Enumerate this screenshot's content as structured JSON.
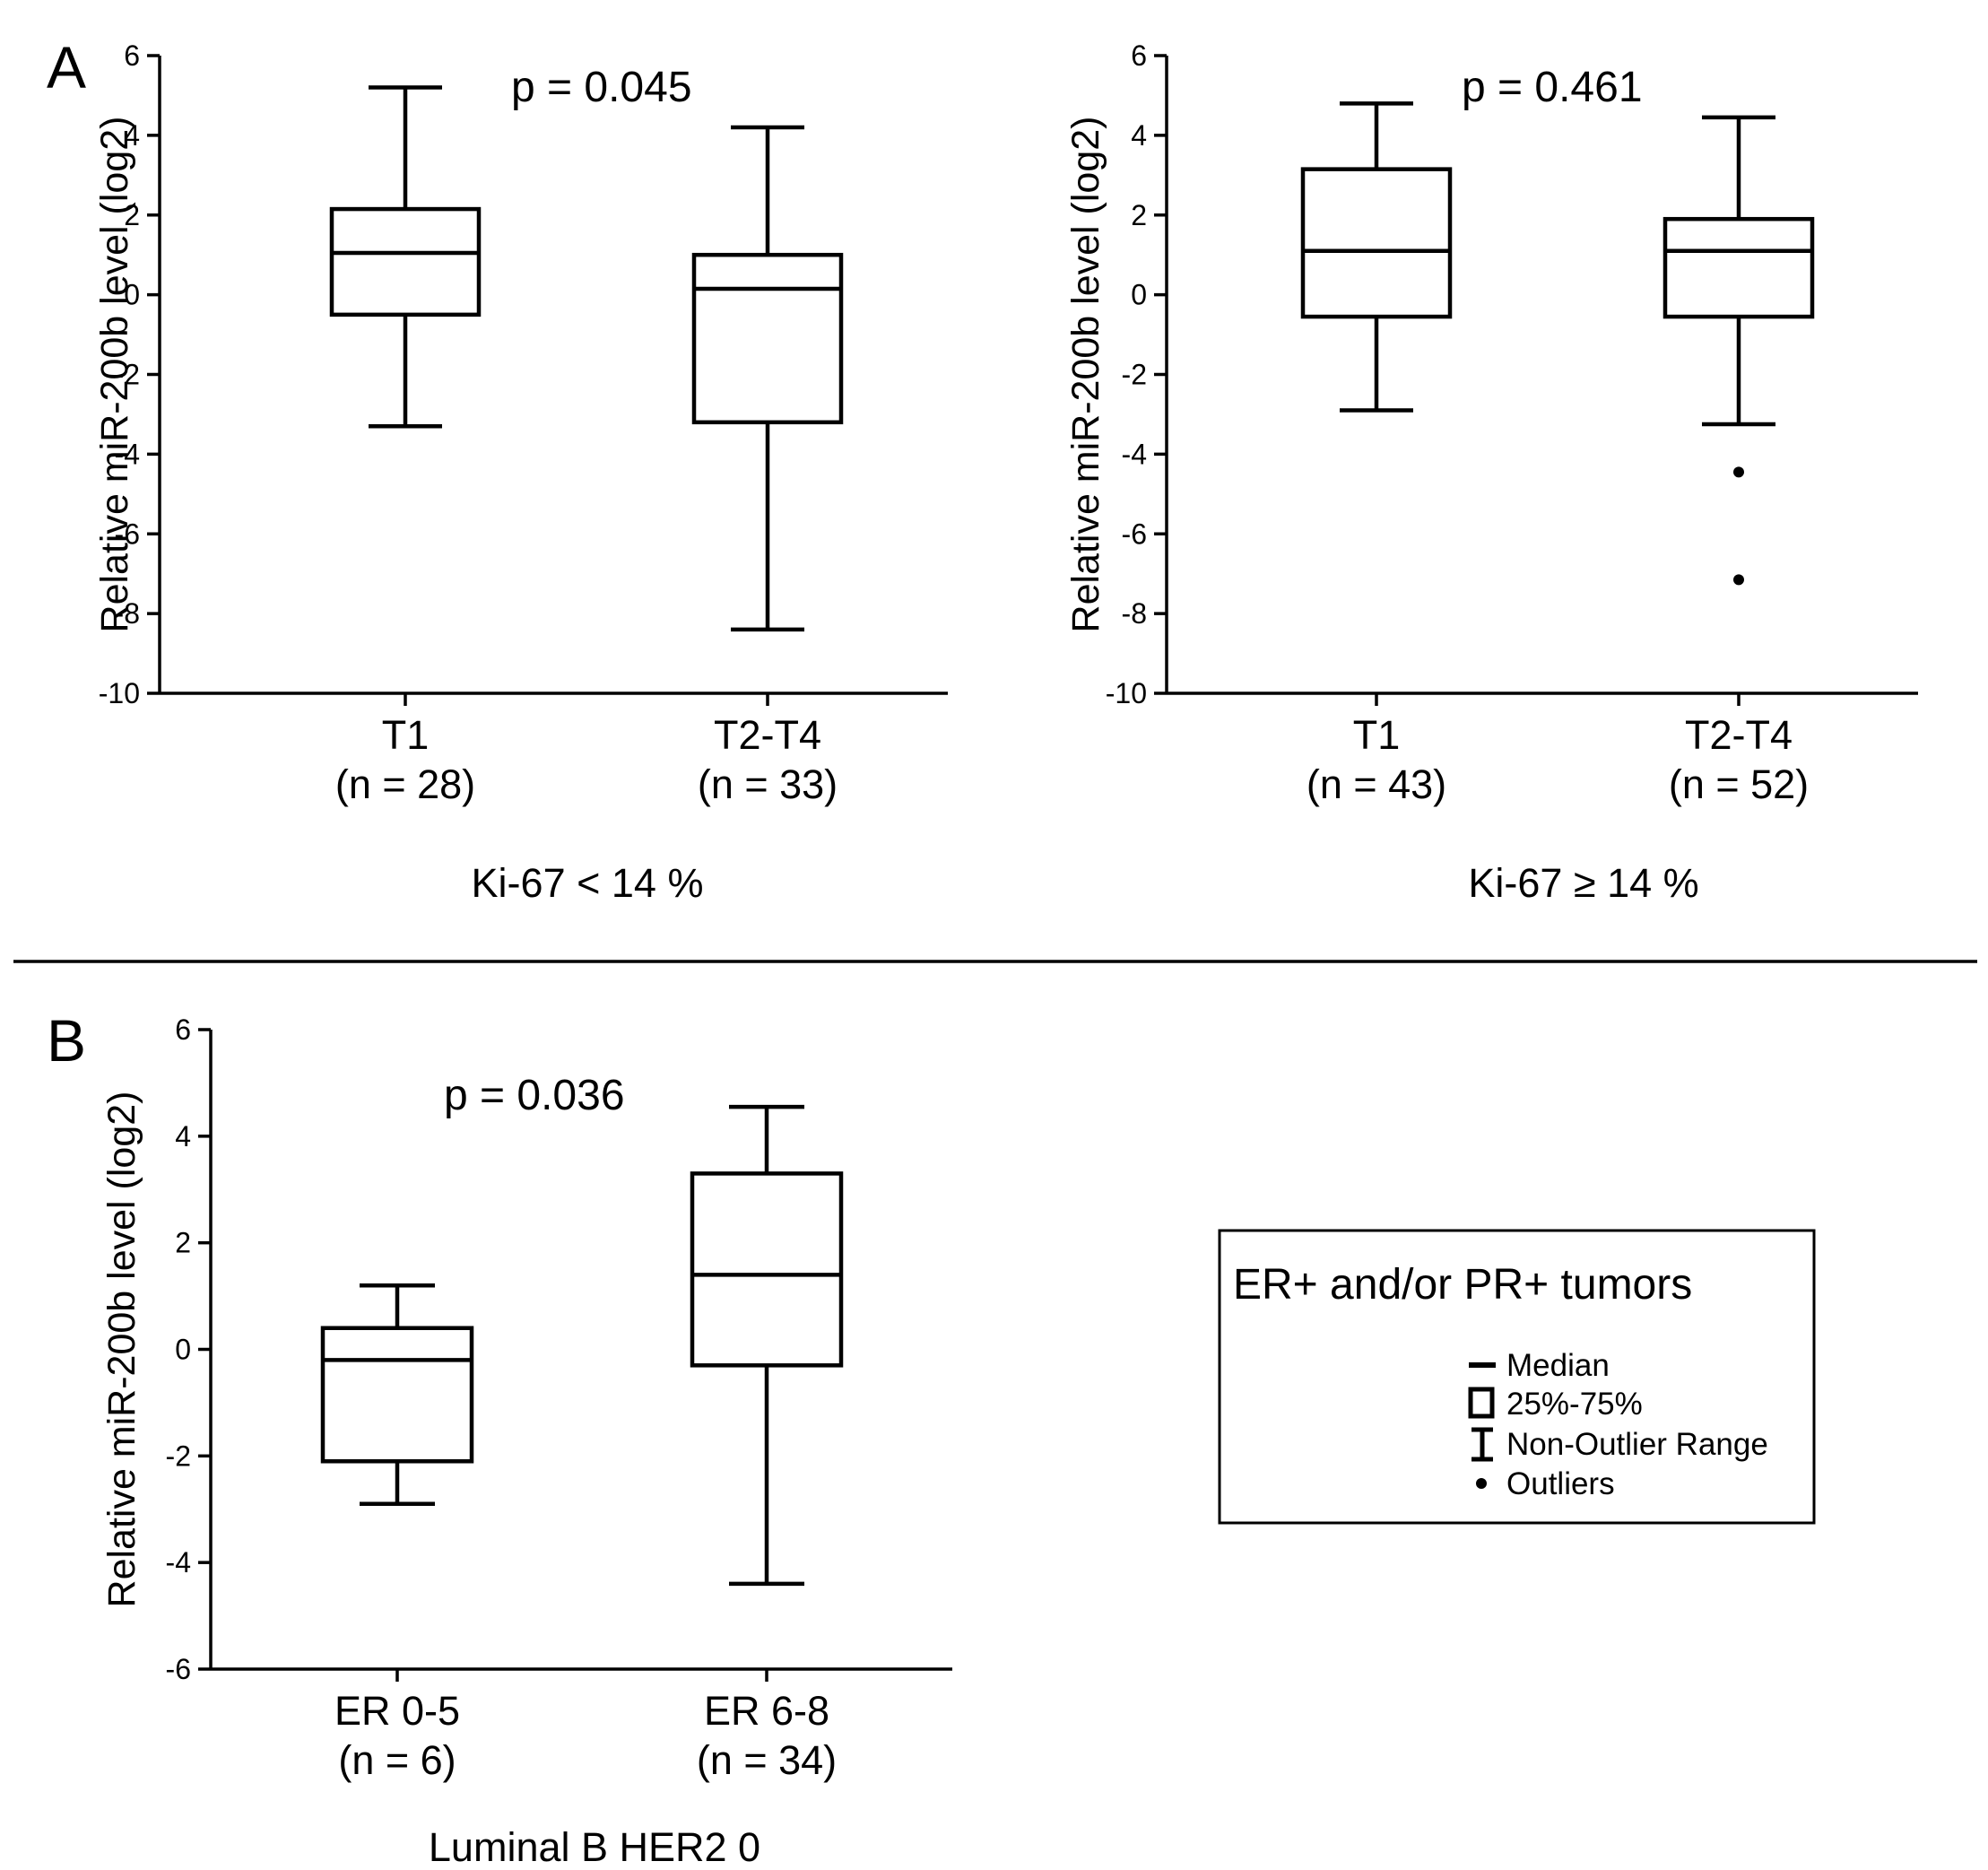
{
  "separator": true,
  "panels": [
    {
      "letter": "A"
    },
    {
      "letter": "B"
    }
  ],
  "chart_data": [
    {
      "type": "box",
      "panel": "A",
      "title": "Ki-67 < 14 %",
      "p_value": "p = 0.045",
      "ylabel": "Relative miR-200b level (log2)",
      "ylim": [
        -10,
        6
      ],
      "yticks": [
        6,
        4,
        2,
        0,
        -2,
        -4,
        -6,
        -8,
        -10
      ],
      "categories": [
        {
          "label": "T1",
          "n": "(n = 28)",
          "min": -3.3,
          "q1": -0.5,
          "median": 1.05,
          "q3": 2.15,
          "max": 5.2,
          "outliers": []
        },
        {
          "label": "T2-T4",
          "n": "(n = 33)",
          "min": -8.4,
          "q1": -3.2,
          "median": 0.15,
          "q3": 1.0,
          "max": 4.2,
          "outliers": []
        }
      ]
    },
    {
      "type": "box",
      "panel": "A",
      "title": "Ki-67 ≥ 14 %",
      "p_value": "p = 0.461",
      "ylabel": "Relative miR-200b level (log2)",
      "ylim": [
        -10,
        6
      ],
      "yticks": [
        6,
        4,
        2,
        0,
        -2,
        -4,
        -6,
        -8,
        -10
      ],
      "categories": [
        {
          "label": "T1",
          "n": "(n = 43)",
          "min": -2.9,
          "q1": -0.55,
          "median": 1.1,
          "q3": 3.15,
          "max": 4.8,
          "outliers": []
        },
        {
          "label": "T2-T4",
          "n": "(n = 52)",
          "min": -3.25,
          "q1": -0.55,
          "median": 1.1,
          "q3": 1.9,
          "max": 4.45,
          "outliers": [
            -4.45,
            -7.15
          ]
        }
      ]
    },
    {
      "type": "box",
      "panel": "B",
      "title": "Luminal B HER2 0",
      "p_value": "p = 0.036",
      "ylabel": "Relative miR-200b level (log2)",
      "ylim": [
        -6,
        6
      ],
      "yticks": [
        6,
        4,
        2,
        0,
        -2,
        -4,
        -6
      ],
      "categories": [
        {
          "label": "ER 0-5",
          "n": "(n = 6)",
          "min": -2.9,
          "q1": -2.1,
          "median": -0.2,
          "q3": 0.4,
          "max": 1.2,
          "outliers": []
        },
        {
          "label": "ER 6-8",
          "n": "(n = 34)",
          "min": -4.4,
          "q1": -0.3,
          "median": 1.4,
          "q3": 3.3,
          "max": 4.55,
          "outliers": []
        }
      ]
    }
  ],
  "legend": {
    "title": "ER+ and/or PR+ tumors",
    "items": [
      {
        "label": "Median",
        "symbol": "median"
      },
      {
        "label": "25%-75%",
        "symbol": "box"
      },
      {
        "label": "Non-Outlier Range",
        "symbol": "whisker"
      },
      {
        "label": "Outliers",
        "symbol": "outlier"
      }
    ]
  }
}
